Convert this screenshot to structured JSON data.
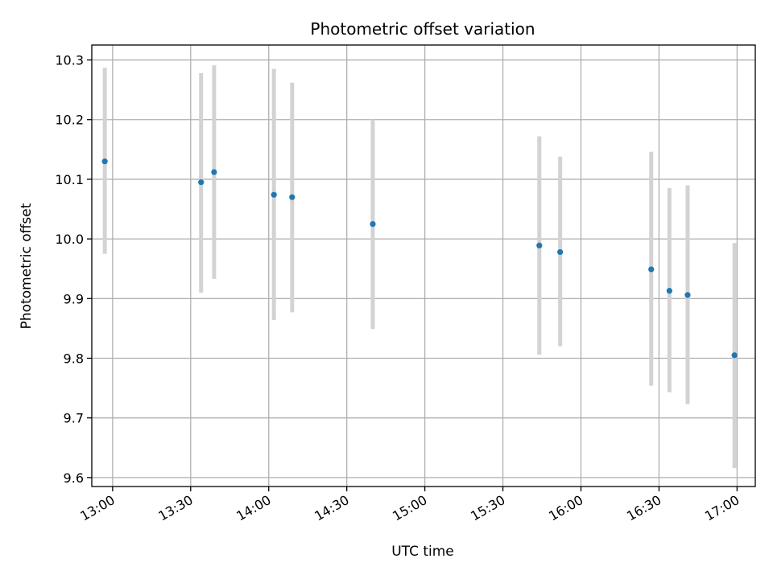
{
  "chart_data": {
    "type": "scatter",
    "title": "Photometric offset variation",
    "xlabel": "UTC time",
    "ylabel": "Photometric offset",
    "grid": true,
    "xlim": [
      "12:52",
      "17:07"
    ],
    "ylim": [
      9.585,
      10.325
    ],
    "x_ticks": [
      "13:00",
      "13:30",
      "14:00",
      "14:30",
      "15:00",
      "15:30",
      "16:00",
      "16:30",
      "17:00"
    ],
    "y_ticks": [
      "9.6",
      "9.7",
      "9.8",
      "9.9",
      "10.0",
      "10.1",
      "10.2",
      "10.3"
    ],
    "colors": {
      "points": "#1f77b4",
      "error_bars": "#d3d3d3",
      "grid": "#b0b0b0"
    },
    "series": [
      {
        "points": [
          {
            "x": "12:57",
            "y": 10.13,
            "ylow": 9.975,
            "yhigh": 10.287
          },
          {
            "x": "13:34",
            "y": 10.095,
            "ylow": 9.91,
            "yhigh": 10.278
          },
          {
            "x": "13:39",
            "y": 10.112,
            "ylow": 9.933,
            "yhigh": 10.291
          },
          {
            "x": "14:02",
            "y": 10.074,
            "ylow": 9.864,
            "yhigh": 10.285
          },
          {
            "x": "14:09",
            "y": 10.07,
            "ylow": 9.877,
            "yhigh": 10.262
          },
          {
            "x": "14:40",
            "y": 10.025,
            "ylow": 9.849,
            "yhigh": 10.2
          },
          {
            "x": "15:44",
            "y": 9.989,
            "ylow": 9.806,
            "yhigh": 10.172
          },
          {
            "x": "15:52",
            "y": 9.978,
            "ylow": 9.82,
            "yhigh": 10.138
          },
          {
            "x": "16:27",
            "y": 9.949,
            "ylow": 9.754,
            "yhigh": 10.146
          },
          {
            "x": "16:34",
            "y": 9.913,
            "ylow": 9.743,
            "yhigh": 10.085
          },
          {
            "x": "16:41",
            "y": 9.906,
            "ylow": 9.723,
            "yhigh": 10.09
          },
          {
            "x": "16:59",
            "y": 9.805,
            "ylow": 9.616,
            "yhigh": 9.993
          }
        ]
      }
    ]
  }
}
